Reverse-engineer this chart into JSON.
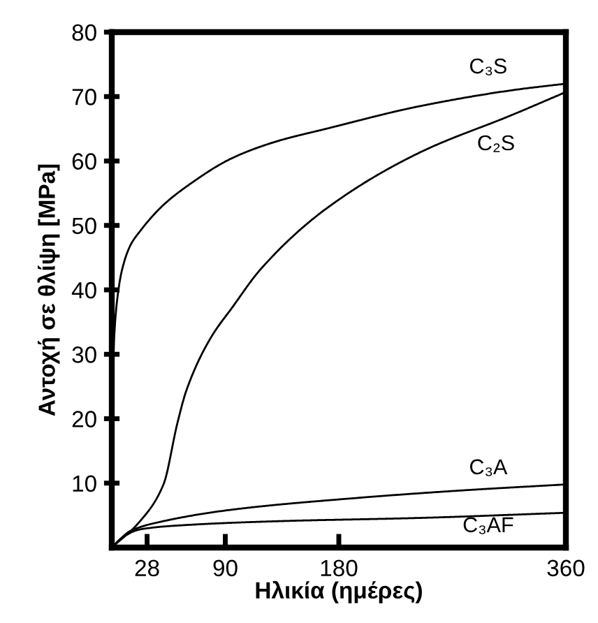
{
  "chart_data": {
    "type": "line",
    "xlabel": "Ηλικία (ημέρες)",
    "ylabel": "Αντοχή σε θλίψη [MPa]",
    "xlim": [
      0,
      360
    ],
    "xticks": [
      28,
      90,
      180,
      360
    ],
    "ylim": [
      0,
      80
    ],
    "yticks": [
      10,
      20,
      30,
      40,
      50,
      60,
      70,
      80
    ],
    "grid": false,
    "legend": false,
    "marker": "none",
    "line_style": "solid",
    "series": [
      {
        "name": "C₃S",
        "color": "#000000",
        "x": [
          0,
          1,
          2,
          4,
          8,
          15,
          22,
          40,
          59,
          96,
          130,
          170,
          244,
          318,
          360
        ],
        "values": [
          0,
          28,
          33,
          38,
          43,
          47,
          49,
          53,
          56,
          60.5,
          63,
          65,
          68.5,
          71,
          72
        ]
      },
      {
        "name": "C₂S",
        "color": "#000000",
        "x": [
          0,
          22,
          41,
          52,
          59,
          78,
          96,
          118,
          170,
          244,
          318,
          360
        ],
        "values": [
          0,
          4,
          9.8,
          19.3,
          24.3,
          32.4,
          37.4,
          43.2,
          52.6,
          61.3,
          67.2,
          70.7
        ]
      },
      {
        "name": "C₃A",
        "color": "#000000",
        "x": [
          0,
          15,
          41,
          96,
          188,
          280,
          360
        ],
        "values": [
          0,
          2.6,
          4.1,
          5.9,
          7.6,
          8.9,
          9.8
        ]
      },
      {
        "name": "C₃AF",
        "color": "#000000",
        "x": [
          0,
          8,
          22,
          59,
          133,
          244,
          360
        ],
        "values": [
          0,
          1.5,
          2.8,
          3.5,
          4.1,
          4.6,
          5.4
        ]
      }
    ]
  }
}
